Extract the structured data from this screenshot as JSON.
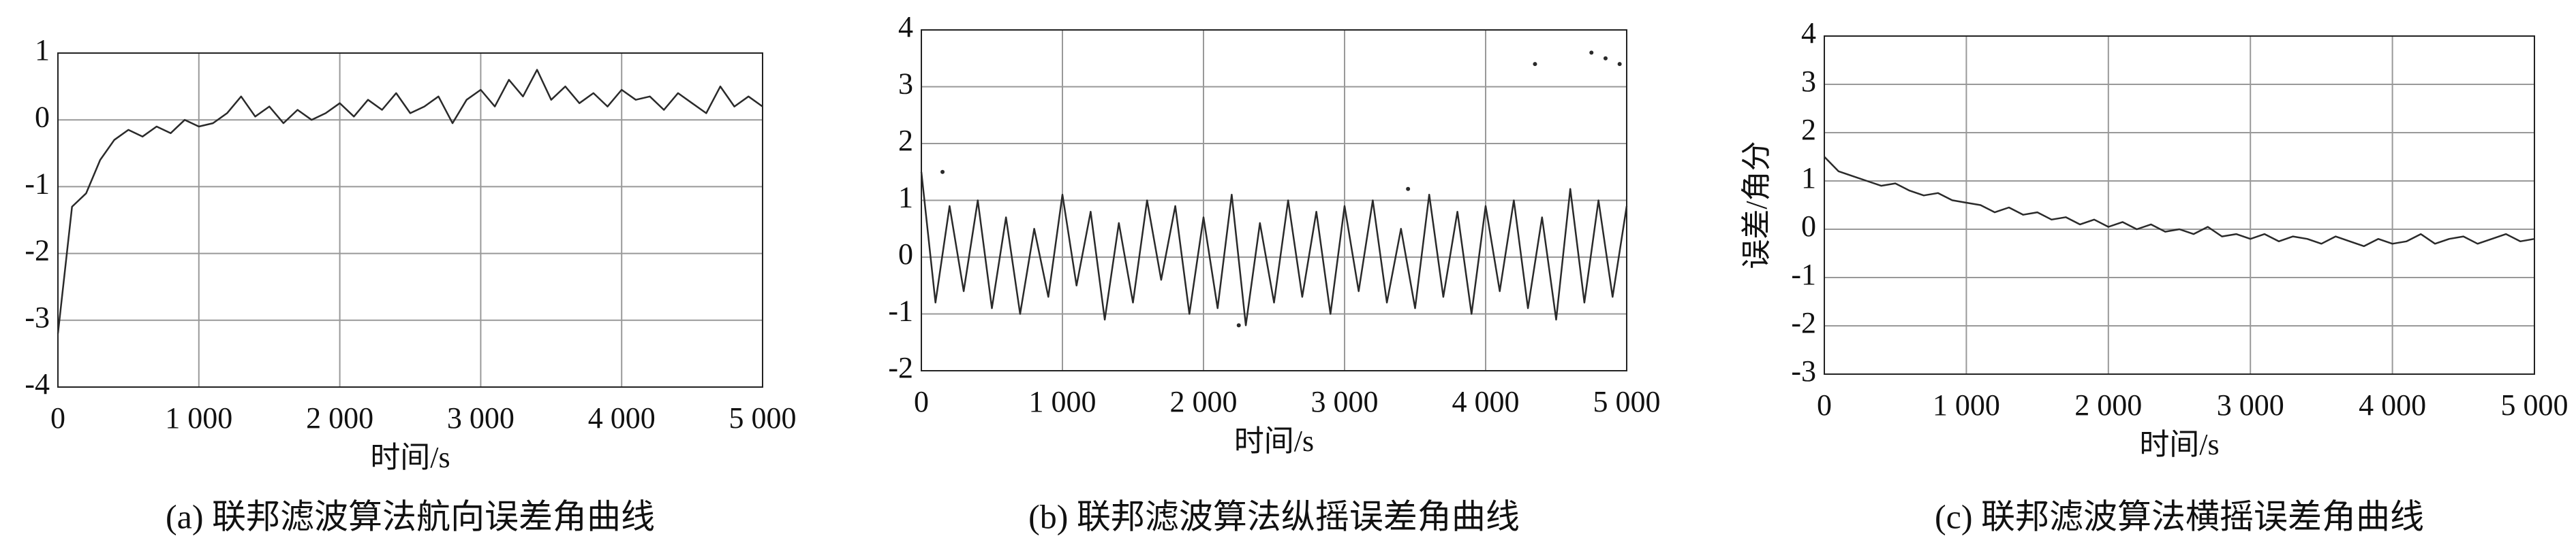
{
  "chart_data": [
    {
      "type": "line",
      "caption": "(a) 联邦滤波算法航向误差角曲线",
      "xlabel": "时间/s",
      "xlim": [
        0,
        5000
      ],
      "ylim": [
        -4,
        1
      ],
      "xticks": [
        0,
        {
          "value": 1000,
          "label": "1 000"
        },
        {
          "value": 2000,
          "label": "2 000"
        },
        {
          "value": 3000,
          "label": "3 000"
        },
        {
          "value": 4000,
          "label": "4 000"
        },
        {
          "value": 5000,
          "label": "5 000"
        }
      ],
      "yticks": [
        -4,
        -3,
        -2,
        -1,
        0,
        1
      ],
      "grid": true,
      "x": [
        0,
        100,
        200,
        300,
        400,
        500,
        600,
        700,
        800,
        900,
        1000,
        1100,
        1200,
        1300,
        1400,
        1500,
        1600,
        1700,
        1800,
        1900,
        2000,
        2100,
        2200,
        2300,
        2400,
        2500,
        2600,
        2700,
        2800,
        2900,
        3000,
        3100,
        3200,
        3300,
        3400,
        3500,
        3600,
        3700,
        3800,
        3900,
        4000,
        4100,
        4200,
        4300,
        4400,
        4500,
        4600,
        4700,
        4800,
        4900,
        5000
      ],
      "series": [
        {
          "color": "#2a2a2a",
          "values": [
            -3.2,
            -1.3,
            -1.1,
            -0.6,
            -0.3,
            -0.15,
            -0.25,
            -0.1,
            -0.2,
            0.0,
            -0.1,
            -0.05,
            0.1,
            0.35,
            0.05,
            0.2,
            -0.05,
            0.15,
            0.0,
            0.1,
            0.25,
            0.05,
            0.3,
            0.15,
            0.4,
            0.1,
            0.2,
            0.35,
            -0.05,
            0.3,
            0.45,
            0.2,
            0.6,
            0.35,
            0.75,
            0.3,
            0.5,
            0.25,
            0.4,
            0.2,
            0.45,
            0.3,
            0.35,
            0.15,
            0.4,
            0.25,
            0.1,
            0.5,
            0.2,
            0.35,
            0.2
          ]
        }
      ]
    },
    {
      "type": "line",
      "caption": "(b) 联邦滤波算法纵摇误差角曲线",
      "xlabel": "时间/s",
      "xlim": [
        0,
        5000
      ],
      "ylim": [
        -2,
        4
      ],
      "xticks": [
        0,
        {
          "value": 1000,
          "label": "1 000"
        },
        {
          "value": 2000,
          "label": "2 000"
        },
        {
          "value": 3000,
          "label": "3 000"
        },
        {
          "value": 4000,
          "label": "4 000"
        },
        {
          "value": 5000,
          "label": "5 000"
        }
      ],
      "yticks": [
        -2,
        -1,
        0,
        1,
        2,
        3,
        4
      ],
      "grid": true,
      "x": [
        0,
        100,
        200,
        300,
        400,
        500,
        600,
        700,
        800,
        900,
        1000,
        1100,
        1200,
        1300,
        1400,
        1500,
        1600,
        1700,
        1800,
        1900,
        2000,
        2100,
        2200,
        2300,
        2400,
        2500,
        2600,
        2700,
        2800,
        2900,
        3000,
        3100,
        3200,
        3300,
        3400,
        3500,
        3600,
        3700,
        3800,
        3900,
        4000,
        4100,
        4200,
        4300,
        4400,
        4500,
        4600,
        4700,
        4800,
        4900,
        5000
      ],
      "series": [
        {
          "color": "#2a2a2a",
          "values": [
            1.5,
            -0.8,
            0.9,
            -0.6,
            1.0,
            -0.9,
            0.7,
            -1.0,
            0.5,
            -0.7,
            1.1,
            -0.5,
            0.8,
            -1.1,
            0.6,
            -0.8,
            1.0,
            -0.4,
            0.9,
            -1.0,
            0.7,
            -0.9,
            1.1,
            -1.2,
            0.6,
            -0.8,
            1.0,
            -0.7,
            0.8,
            -1.0,
            0.9,
            -0.6,
            1.0,
            -0.8,
            0.5,
            -0.9,
            1.1,
            -0.7,
            0.8,
            -1.0,
            0.9,
            -0.6,
            1.0,
            -0.9,
            0.7,
            -1.1,
            1.2,
            -0.8,
            1.0,
            -0.7,
            0.9
          ]
        },
        {
          "color": "#2a2a2a",
          "mode": "markers",
          "x": [
            150,
            2250,
            3450,
            4350,
            4750,
            4850,
            4950
          ],
          "values": [
            1.5,
            -1.2,
            1.2,
            3.4,
            3.6,
            3.5,
            3.4
          ]
        }
      ]
    },
    {
      "type": "line",
      "caption": "(c) 联邦滤波算法横摇误差角曲线",
      "xlabel": "时间/s",
      "ylabel": "误差/角分",
      "xlim": [
        0,
        5000
      ],
      "ylim": [
        -3,
        4
      ],
      "xticks": [
        0,
        {
          "value": 1000,
          "label": "1 000"
        },
        {
          "value": 2000,
          "label": "2 000"
        },
        {
          "value": 3000,
          "label": "3 000"
        },
        {
          "value": 4000,
          "label": "4 000"
        },
        {
          "value": 5000,
          "label": "5 000"
        }
      ],
      "yticks": [
        -3,
        -2,
        -1,
        0,
        1,
        2,
        3,
        4
      ],
      "grid": true,
      "x": [
        0,
        100,
        200,
        300,
        400,
        500,
        600,
        700,
        800,
        900,
        1000,
        1100,
        1200,
        1300,
        1400,
        1500,
        1600,
        1700,
        1800,
        1900,
        2000,
        2100,
        2200,
        2300,
        2400,
        2500,
        2600,
        2700,
        2800,
        2900,
        3000,
        3100,
        3200,
        3300,
        3400,
        3500,
        3600,
        3700,
        3800,
        3900,
        4000,
        4100,
        4200,
        4300,
        4400,
        4500,
        4600,
        4700,
        4800,
        4900,
        5000
      ],
      "series": [
        {
          "color": "#2a2a2a",
          "values": [
            1.5,
            1.2,
            1.1,
            1.0,
            0.9,
            0.95,
            0.8,
            0.7,
            0.75,
            0.6,
            0.55,
            0.5,
            0.35,
            0.45,
            0.3,
            0.35,
            0.2,
            0.25,
            0.1,
            0.2,
            0.05,
            0.15,
            0.0,
            0.1,
            -0.05,
            0.0,
            -0.1,
            0.05,
            -0.15,
            -0.1,
            -0.2,
            -0.1,
            -0.25,
            -0.15,
            -0.2,
            -0.3,
            -0.15,
            -0.25,
            -0.35,
            -0.2,
            -0.3,
            -0.25,
            -0.1,
            -0.3,
            -0.2,
            -0.15,
            -0.3,
            -0.2,
            -0.1,
            -0.25,
            -0.2
          ]
        }
      ]
    }
  ]
}
